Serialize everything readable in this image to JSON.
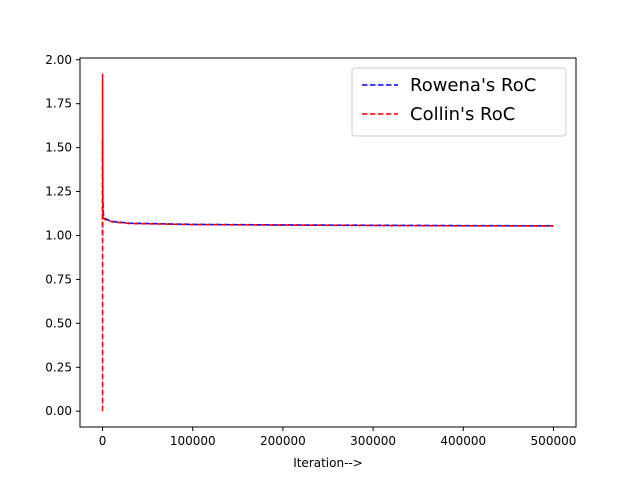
{
  "chart_data": {
    "type": "line",
    "title": "",
    "xlabel": "Iteration-->",
    "ylabel": "",
    "xlim": [
      -25000,
      525000
    ],
    "ylim": [
      -0.09,
      2.01
    ],
    "xticks": [
      0,
      100000,
      200000,
      300000,
      400000,
      500000
    ],
    "xtick_labels": [
      "0",
      "100000",
      "200000",
      "300000",
      "400000",
      "500000"
    ],
    "yticks": [
      0.0,
      0.25,
      0.5,
      0.75,
      1.0,
      1.25,
      1.5,
      1.75,
      2.0
    ],
    "ytick_labels": [
      "0.00",
      "0.25",
      "0.50",
      "0.75",
      "1.00",
      "1.25",
      "1.50",
      "1.75",
      "2.00"
    ],
    "grid": false,
    "legend_position": "top-right",
    "series": [
      {
        "name": "Rowena's RoC",
        "color": "#0000ff",
        "style": "dashed",
        "points": [
          [
            0,
            1.0
          ],
          [
            0,
            1.55
          ],
          [
            300,
            1.2
          ],
          [
            1000,
            1.12
          ],
          [
            3000,
            1.095
          ],
          [
            10000,
            1.08
          ],
          [
            30000,
            1.07
          ],
          [
            100000,
            1.063
          ],
          [
            200000,
            1.06
          ],
          [
            300000,
            1.058
          ],
          [
            400000,
            1.056
          ],
          [
            500000,
            1.055
          ]
        ]
      },
      {
        "name": "Collin's RoC",
        "color": "#ff0000",
        "style": "dashed",
        "points": [
          [
            0,
            0.0
          ],
          [
            0,
            1.92
          ],
          [
            300,
            1.15
          ],
          [
            1000,
            1.1
          ],
          [
            3000,
            1.09
          ],
          [
            10000,
            1.078
          ],
          [
            30000,
            1.068
          ],
          [
            100000,
            1.062
          ],
          [
            200000,
            1.059
          ],
          [
            300000,
            1.057
          ],
          [
            400000,
            1.055
          ],
          [
            500000,
            1.054
          ]
        ]
      }
    ]
  }
}
